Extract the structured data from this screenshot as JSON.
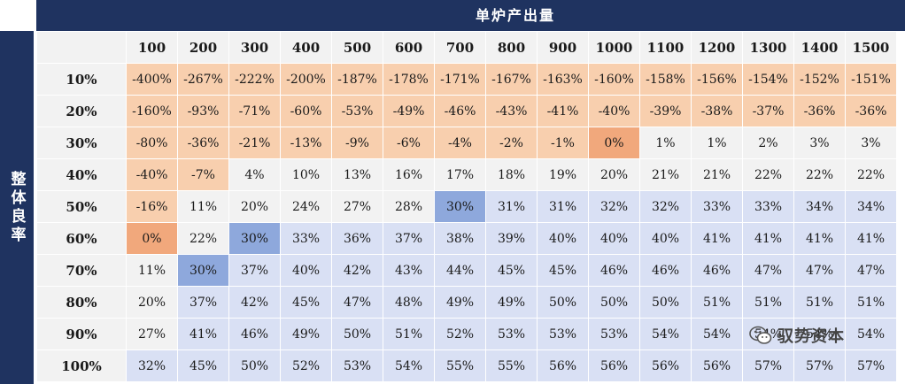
{
  "header": {
    "title": "单炉产出量"
  },
  "side": {
    "title": "整体良率"
  },
  "table": {
    "columns": [
      "100",
      "200",
      "300",
      "400",
      "500",
      "600",
      "700",
      "800",
      "900",
      "1000",
      "1100",
      "1200",
      "1300",
      "1400",
      "1500"
    ],
    "rows": [
      {
        "label": "10%",
        "cells": [
          "-400%",
          "-267%",
          "-222%",
          "-200%",
          "-187%",
          "-178%",
          "-171%",
          "-167%",
          "-163%",
          "-160%",
          "-158%",
          "-156%",
          "-154%",
          "-152%",
          "-151%"
        ],
        "tones": [
          "neg",
          "neg",
          "neg",
          "neg",
          "neg",
          "neg",
          "neg",
          "neg",
          "neg",
          "neg",
          "neg",
          "neg",
          "neg",
          "neg",
          "neg"
        ]
      },
      {
        "label": "20%",
        "cells": [
          "-160%",
          "-93%",
          "-71%",
          "-60%",
          "-53%",
          "-49%",
          "-46%",
          "-43%",
          "-41%",
          "-40%",
          "-39%",
          "-38%",
          "-37%",
          "-36%",
          "-36%"
        ],
        "tones": [
          "neg",
          "neg",
          "neg",
          "neg",
          "neg",
          "neg",
          "neg",
          "neg",
          "neg",
          "neg",
          "neg",
          "neg",
          "neg",
          "neg",
          "neg"
        ]
      },
      {
        "label": "30%",
        "cells": [
          "-80%",
          "-36%",
          "-21%",
          "-13%",
          "-9%",
          "-6%",
          "-4%",
          "-2%",
          "-1%",
          "0%",
          "1%",
          "1%",
          "2%",
          "3%",
          "3%"
        ],
        "tones": [
          "neg",
          "neg",
          "neg",
          "neg",
          "neg",
          "neg",
          "neg",
          "neg",
          "neg",
          "hl-orange",
          "neu",
          "neu",
          "neu",
          "neu",
          "neu"
        ]
      },
      {
        "label": "40%",
        "cells": [
          "-40%",
          "-7%",
          "4%",
          "10%",
          "13%",
          "16%",
          "17%",
          "18%",
          "19%",
          "20%",
          "21%",
          "21%",
          "22%",
          "22%",
          "22%"
        ],
        "tones": [
          "neg",
          "neg",
          "neu",
          "neu",
          "neu",
          "neu",
          "neu",
          "neu",
          "neu",
          "neu",
          "neu",
          "neu",
          "neu",
          "neu",
          "neu"
        ]
      },
      {
        "label": "50%",
        "cells": [
          "-16%",
          "11%",
          "20%",
          "24%",
          "27%",
          "28%",
          "30%",
          "31%",
          "31%",
          "32%",
          "32%",
          "33%",
          "33%",
          "34%",
          "34%"
        ],
        "tones": [
          "neg",
          "neu",
          "neu",
          "neu",
          "neu",
          "neu",
          "hl-blue",
          "pos",
          "pos",
          "pos",
          "pos",
          "pos",
          "pos",
          "pos",
          "pos"
        ]
      },
      {
        "label": "60%",
        "cells": [
          "0%",
          "22%",
          "30%",
          "33%",
          "36%",
          "37%",
          "38%",
          "39%",
          "40%",
          "40%",
          "40%",
          "41%",
          "41%",
          "41%",
          "41%"
        ],
        "tones": [
          "hl-orange",
          "neu",
          "hl-blue",
          "pos",
          "pos",
          "pos",
          "pos",
          "pos",
          "pos",
          "pos",
          "pos",
          "pos",
          "pos",
          "pos",
          "pos"
        ]
      },
      {
        "label": "70%",
        "cells": [
          "11%",
          "30%",
          "37%",
          "40%",
          "42%",
          "43%",
          "44%",
          "45%",
          "45%",
          "46%",
          "46%",
          "46%",
          "47%",
          "47%",
          "47%"
        ],
        "tones": [
          "neu",
          "hl-blue",
          "pos",
          "pos",
          "pos",
          "pos",
          "pos",
          "pos",
          "pos",
          "pos",
          "pos",
          "pos",
          "pos",
          "pos",
          "pos"
        ]
      },
      {
        "label": "80%",
        "cells": [
          "20%",
          "37%",
          "42%",
          "45%",
          "47%",
          "48%",
          "49%",
          "49%",
          "50%",
          "50%",
          "50%",
          "51%",
          "51%",
          "51%",
          "51%"
        ],
        "tones": [
          "neu",
          "pos",
          "pos",
          "pos",
          "pos",
          "pos",
          "pos",
          "pos",
          "pos",
          "pos",
          "pos",
          "pos",
          "pos",
          "pos",
          "pos"
        ]
      },
      {
        "label": "90%",
        "cells": [
          "27%",
          "41%",
          "46%",
          "49%",
          "50%",
          "51%",
          "52%",
          "53%",
          "53%",
          "53%",
          "54%",
          "54%",
          "54%",
          "54%",
          "54%"
        ],
        "tones": [
          "neu",
          "pos",
          "pos",
          "pos",
          "pos",
          "pos",
          "pos",
          "pos",
          "pos",
          "pos",
          "pos",
          "pos",
          "pos",
          "pos",
          "pos"
        ]
      },
      {
        "label": "100%",
        "cells": [
          "32%",
          "45%",
          "50%",
          "52%",
          "53%",
          "54%",
          "55%",
          "55%",
          "56%",
          "56%",
          "56%",
          "56%",
          "57%",
          "57%",
          "57%"
        ],
        "tones": [
          "pos",
          "pos",
          "pos",
          "pos",
          "pos",
          "pos",
          "pos",
          "pos",
          "pos",
          "pos",
          "pos",
          "pos",
          "pos",
          "pos",
          "pos"
        ]
      }
    ]
  },
  "colors": {
    "band": "#1f3360",
    "negative": "#f8cfae",
    "neutral": "#f2f2f2",
    "positive": "#d9e0f4",
    "highlight_orange": "#f1a87c",
    "highlight_blue": "#8ea8dc"
  },
  "watermark": {
    "icon": "wechat-icon",
    "text": "驭势资本"
  }
}
